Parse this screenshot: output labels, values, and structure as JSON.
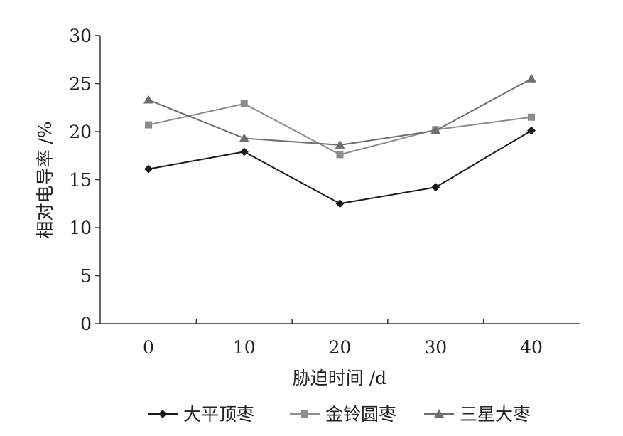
{
  "chart_data": {
    "type": "line",
    "x": [
      0,
      10,
      20,
      30,
      40
    ],
    "xlabel": "胁迫时间 /d",
    "ylabel": "相对电导率 /%",
    "xticks": [
      "0",
      "10",
      "20",
      "30",
      "40"
    ],
    "yticks": [
      "0",
      "5",
      "10",
      "15",
      "20",
      "25",
      "30"
    ],
    "ylim": [
      0,
      30
    ],
    "grid": false,
    "legend": "bottom",
    "series": [
      {
        "name": "大平顶枣",
        "marker": "diamond",
        "color": "#1a1a1a",
        "values": [
          16.1,
          17.9,
          12.5,
          14.2,
          20.1
        ]
      },
      {
        "name": "金铃圆枣",
        "marker": "square",
        "color": "#8c8c8c",
        "values": [
          20.7,
          22.9,
          17.6,
          20.2,
          21.5
        ]
      },
      {
        "name": "三星大枣",
        "marker": "triangle",
        "color": "#6e6e6e",
        "values": [
          23.3,
          19.3,
          18.6,
          20.1,
          25.5
        ]
      }
    ]
  }
}
